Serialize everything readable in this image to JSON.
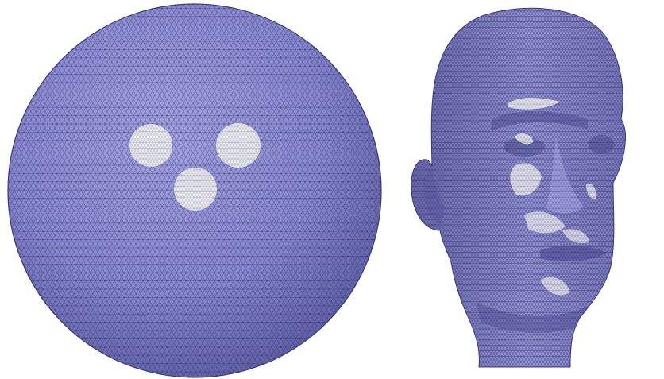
{
  "figure": {
    "panels": [
      {
        "id": "sphere",
        "highlight_count": 3
      },
      {
        "id": "head",
        "highlight_count": 7
      }
    ]
  },
  "colors": {
    "background": "#ffffff",
    "mesh_fill": "#8c8cd6",
    "mesh_fill_shadow": "#5d5da6",
    "mesh_fill_light": "#a9a9e6",
    "wire": "#2e2e55",
    "highlight": "#ebebf0"
  }
}
